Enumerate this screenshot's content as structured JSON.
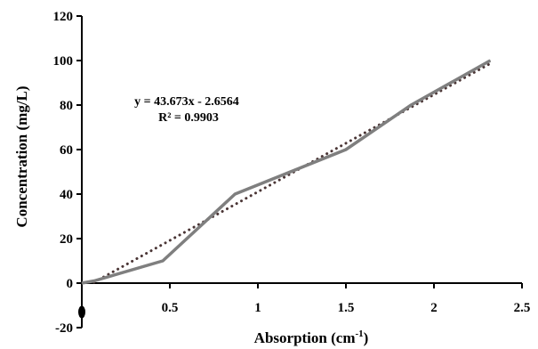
{
  "chart_data": {
    "type": "line",
    "title": "",
    "xlabel": "Absorption (cm",
    "xlabel_sup": "-1",
    "xlabel_end": ")",
    "ylabel": "Concentration (mg/L)",
    "xlim": [
      0,
      2.5
    ],
    "ylim": [
      -20,
      120
    ],
    "x_ticks": [
      0.5,
      1,
      1.5,
      2,
      2.5
    ],
    "x_tick_labels": [
      "0.5",
      "1",
      "1.5",
      "2",
      "2.5"
    ],
    "y_ticks": [
      -20,
      0,
      20,
      40,
      60,
      80,
      100,
      120
    ],
    "y_tick_labels": [
      "-20",
      "0",
      "20",
      "40",
      "60",
      "80",
      "100",
      "120"
    ],
    "grid": false,
    "series": [
      {
        "color": "#7f7f7f",
        "points": [
          {
            "x": 0,
            "y": 0
          },
          {
            "x": 0.07,
            "y": 1
          },
          {
            "x": 0.46,
            "y": 10
          },
          {
            "x": 0.87,
            "y": 40
          },
          {
            "x": 1.5,
            "y": 60
          },
          {
            "x": 1.87,
            "y": 80
          },
          {
            "x": 2.32,
            "y": 100
          }
        ]
      }
    ],
    "trendline": {
      "type": "linear",
      "slope": 43.673,
      "intercept": -2.6564,
      "color": "#4a3535",
      "style": "dotted",
      "equation": "y = 43.673x - 2.6564",
      "r_squared": "R² = 0.9903"
    },
    "marker": {
      "x": 0,
      "y": -13,
      "color": "#000000"
    }
  }
}
